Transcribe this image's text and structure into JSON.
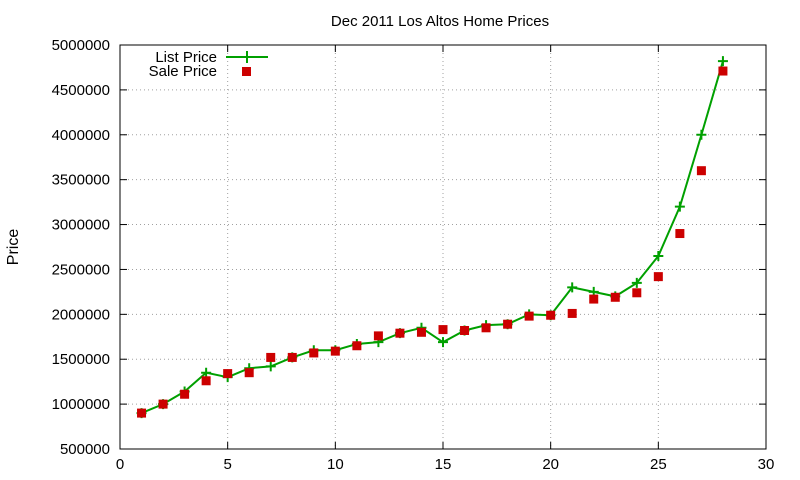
{
  "chart_data": {
    "type": "line",
    "title": "Dec 2011 Los Altos Home Prices",
    "xlabel": "",
    "ylabel": "Price",
    "xlim": [
      0,
      30
    ],
    "ylim": [
      500000,
      5000000
    ],
    "xticks": [
      0,
      5,
      10,
      15,
      20,
      25,
      30
    ],
    "yticks": [
      500000,
      1000000,
      1500000,
      2000000,
      2500000,
      3000000,
      3500000,
      4000000,
      4500000,
      5000000
    ],
    "grid": true,
    "legend_position": "top-left",
    "x": [
      1,
      2,
      3,
      4,
      5,
      6,
      7,
      8,
      9,
      10,
      11,
      12,
      13,
      14,
      15,
      16,
      17,
      18,
      19,
      20,
      21,
      22,
      23,
      24,
      25,
      26,
      27,
      28
    ],
    "series": [
      {
        "name": "List Price",
        "style": "line-plus",
        "color": "#00a000",
        "values": [
          900000,
          1000000,
          1140000,
          1350000,
          1300000,
          1400000,
          1420000,
          1520000,
          1600000,
          1600000,
          1670000,
          1690000,
          1790000,
          1850000,
          1690000,
          1820000,
          1880000,
          1890000,
          2000000,
          1990000,
          2300000,
          2250000,
          2200000,
          2350000,
          2650000,
          3200000,
          4000000,
          4820000
        ]
      },
      {
        "name": "Sale Price",
        "style": "square-markers",
        "color": "#cc0000",
        "values": [
          900000,
          1000000,
          1110000,
          1260000,
          1340000,
          1350000,
          1520000,
          1520000,
          1570000,
          1590000,
          1650000,
          1760000,
          1790000,
          1800000,
          1830000,
          1820000,
          1850000,
          1890000,
          1980000,
          1990000,
          2010000,
          2170000,
          2190000,
          2240000,
          2420000,
          2900000,
          3600000,
          4710000
        ]
      }
    ]
  }
}
